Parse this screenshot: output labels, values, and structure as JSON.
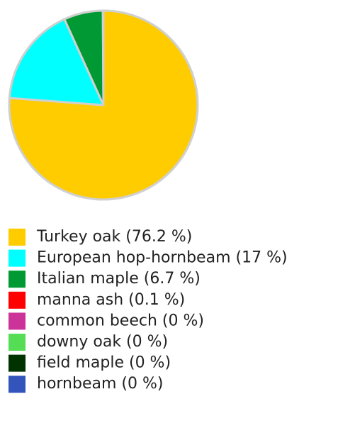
{
  "chart_data": {
    "type": "pie",
    "categories": [
      "Turkey oak (76.2 %)",
      "European hop-hornbeam (17 %)",
      "Italian maple (6.7 %)",
      "manna ash (0.1 %)",
      "common beech (0 %)",
      "downy oak (0 %)",
      "field maple (0 %)",
      "hornbeam (0 %)"
    ],
    "values": [
      76.2,
      17,
      6.7,
      0.1,
      0,
      0,
      0,
      0
    ],
    "colors": [
      "#ffcc00",
      "#00ffff",
      "#009933",
      "#ff0000",
      "#cc3399",
      "#55dd55",
      "#003300",
      "#3355bb"
    ],
    "legend": "bottom"
  }
}
